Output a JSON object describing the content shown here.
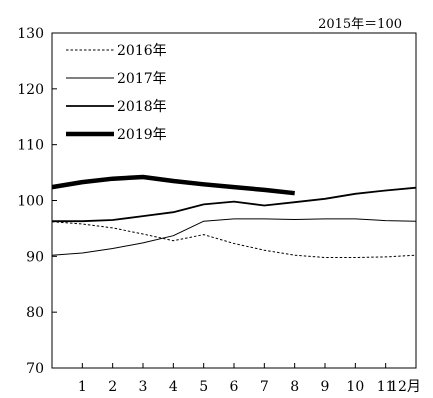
{
  "chart_data": {
    "type": "line",
    "title": "",
    "xlabel": "",
    "ylabel": "",
    "unit_note": "2015年＝100",
    "x_ticks": [
      "1",
      "2",
      "3",
      "4",
      "5",
      "6",
      "7",
      "8",
      "9",
      "10",
      "11",
      "12月"
    ],
    "y_ticks": [
      "70",
      "80",
      "90",
      "100",
      "110",
      "120",
      "130"
    ],
    "xlim": [
      0,
      12
    ],
    "ylim": [
      70,
      130
    ],
    "grid": false,
    "legend_position": "top-left",
    "series": [
      {
        "name": "2016年",
        "style": "dotted",
        "color": "#000000",
        "x": [
          0,
          1,
          2,
          3,
          4,
          5,
          6,
          7,
          8,
          9,
          10,
          11,
          12
        ],
        "y": [
          96.2,
          95.8,
          95.1,
          94.0,
          92.8,
          93.9,
          92.3,
          91.1,
          90.2,
          89.8,
          89.8,
          89.9,
          90.2
        ]
      },
      {
        "name": "2017年",
        "style": "thin",
        "color": "#000000",
        "x": [
          0,
          1,
          2,
          3,
          4,
          5,
          6,
          7,
          8,
          9,
          10,
          11,
          12
        ],
        "y": [
          90.2,
          90.6,
          91.4,
          92.4,
          93.7,
          96.3,
          96.7,
          96.7,
          96.6,
          96.7,
          96.7,
          96.4,
          96.3
        ]
      },
      {
        "name": "2018年",
        "style": "medium",
        "color": "#000000",
        "x": [
          0,
          1,
          2,
          3,
          4,
          5,
          6,
          7,
          8,
          9,
          10,
          11,
          12
        ],
        "y": [
          96.3,
          96.3,
          96.5,
          97.2,
          97.9,
          99.3,
          99.8,
          99.1,
          99.7,
          100.3,
          101.2,
          101.8,
          102.3
        ]
      },
      {
        "name": "2019年",
        "style": "thick",
        "color": "#000000",
        "x": [
          0,
          1,
          2,
          3,
          4,
          5,
          6,
          7,
          8
        ],
        "y": [
          102.4,
          103.3,
          103.9,
          104.2,
          103.5,
          102.9,
          102.4,
          101.9,
          101.3
        ]
      }
    ]
  }
}
